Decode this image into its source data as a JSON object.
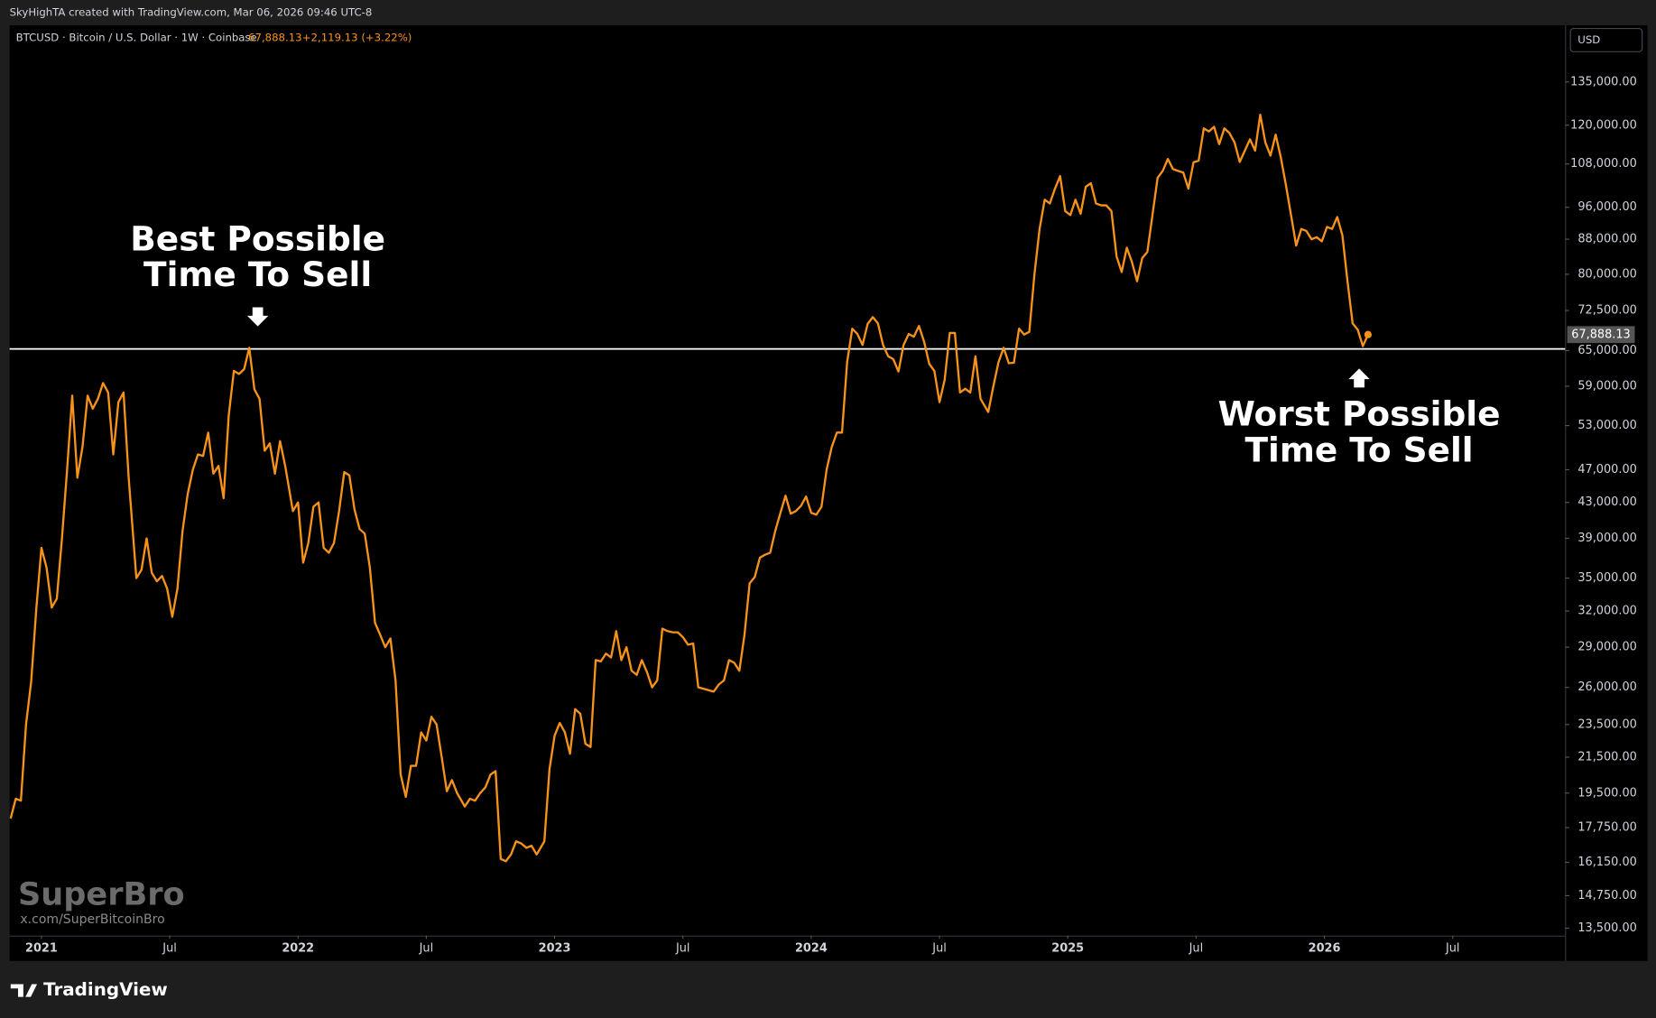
{
  "header": {
    "credit": "SkyHighTA created with TradingView.com, Mar 06, 2026 09:46 UTC-8",
    "symbol": "BTCUSD · Bitcoin / U.S. Dollar · 1W · Coinbase",
    "change": "+2,119.13 (+3.22%)",
    "currency": "USD"
  },
  "watermark": {
    "name": "SuperBro",
    "handle": "x.com/SuperBitcoinBro"
  },
  "footer": {
    "brand": "TradingView"
  },
  "chart_data": {
    "type": "line",
    "log_scale": true,
    "grid": false,
    "annotations": [
      "Best Possible",
      "Time To Sell",
      "Worst Possible",
      "Time To Sell"
    ],
    "price_label": "67,888.13",
    "reference_line": 65300,
    "xlim": [
      2020.876,
      2026.938
    ],
    "xticks": [
      {
        "value": 2021,
        "label": "2021"
      },
      {
        "value": 2021.5,
        "label": "Jul"
      },
      {
        "value": 2022,
        "label": "2022"
      },
      {
        "value": 2022.5,
        "label": "Jul"
      },
      {
        "value": 2023,
        "label": "2023"
      },
      {
        "value": 2023.5,
        "label": "Jul"
      },
      {
        "value": 2024,
        "label": "2024"
      },
      {
        "value": 2024.5,
        "label": "Jul"
      },
      {
        "value": 2025,
        "label": "2025"
      },
      {
        "value": 2025.5,
        "label": "Jul"
      },
      {
        "value": 2026,
        "label": "2026"
      },
      {
        "value": 2026.5,
        "label": "Jul"
      }
    ],
    "ylim": [
      13230,
      157500
    ],
    "yticks": [
      {
        "value": 135000,
        "label": "135,000.00"
      },
      {
        "value": 120000,
        "label": "120,000.00"
      },
      {
        "value": 108000,
        "label": "108,000.00"
      },
      {
        "value": 96000,
        "label": "96,000.00"
      },
      {
        "value": 88000,
        "label": "88,000.00"
      },
      {
        "value": 80000,
        "label": "80,000.00"
      },
      {
        "value": 72500,
        "label": "72,500.00"
      },
      {
        "value": 65000,
        "label": "65,000.00"
      },
      {
        "value": 59000,
        "label": "59,000.00"
      },
      {
        "value": 53000,
        "label": "53,000.00"
      },
      {
        "value": 47000,
        "label": "47,000.00"
      },
      {
        "value": 43000,
        "label": "43,000.00"
      },
      {
        "value": 39000,
        "label": "39,000.00"
      },
      {
        "value": 35000,
        "label": "35,000.00"
      },
      {
        "value": 32000,
        "label": "32,000.00"
      },
      {
        "value": 29000,
        "label": "29,000.00"
      },
      {
        "value": 26000,
        "label": "26,000.00"
      },
      {
        "value": 23500,
        "label": "23,500.00"
      },
      {
        "value": 21500,
        "label": "21,500.00"
      },
      {
        "value": 19500,
        "label": "19,500.00"
      },
      {
        "value": 17750,
        "label": "17,750.00"
      },
      {
        "value": 16150,
        "label": "16,150.00"
      },
      {
        "value": 14750,
        "label": "14,750.00"
      },
      {
        "value": 13500,
        "label": "13,500.00"
      }
    ],
    "x": [
      2020.88,
      2020.9,
      2020.92,
      2020.94,
      2020.96,
      2020.98,
      2021.0,
      2021.02,
      2021.04,
      2021.06,
      2021.08,
      2021.1,
      2021.12,
      2021.14,
      2021.16,
      2021.18,
      2021.2,
      2021.22,
      2021.24,
      2021.26,
      2021.28,
      2021.3,
      2021.32,
      2021.34,
      2021.37,
      2021.39,
      2021.41,
      2021.43,
      2021.45,
      2021.47,
      2021.49,
      2021.51,
      2021.53,
      2021.55,
      2021.57,
      2021.59,
      2021.61,
      2021.63,
      2021.65,
      2021.67,
      2021.69,
      2021.71,
      2021.73,
      2021.75,
      2021.77,
      2021.79,
      2021.81,
      2021.83,
      2021.85,
      2021.87,
      2021.89,
      2021.91,
      2021.93,
      2021.95,
      2021.98,
      2022.0,
      2022.02,
      2022.04,
      2022.06,
      2022.08,
      2022.1,
      2022.12,
      2022.14,
      2022.16,
      2022.18,
      2022.2,
      2022.22,
      2022.24,
      2022.26,
      2022.28,
      2022.3,
      2022.32,
      2022.34,
      2022.36,
      2022.38,
      2022.4,
      2022.42,
      2022.44,
      2022.46,
      2022.48,
      2022.5,
      2022.52,
      2022.54,
      2022.56,
      2022.58,
      2022.6,
      2022.62,
      2022.65,
      2022.67,
      2022.69,
      2022.71,
      2022.73,
      2022.75,
      2022.77,
      2022.79,
      2022.81,
      2022.83,
      2022.85,
      2022.87,
      2022.89,
      2022.91,
      2022.93,
      2022.96,
      2022.98,
      2023.0,
      2023.02,
      2023.04,
      2023.06,
      2023.08,
      2023.1,
      2023.12,
      2023.14,
      2023.16,
      2023.18,
      2023.2,
      2023.22,
      2023.24,
      2023.26,
      2023.28,
      2023.3,
      2023.32,
      2023.34,
      2023.36,
      2023.38,
      2023.4,
      2023.42,
      2023.44,
      2023.46,
      2023.48,
      2023.5,
      2023.52,
      2023.54,
      2023.56,
      2023.58,
      2023.6,
      2023.62,
      2023.64,
      2023.66,
      2023.68,
      2023.7,
      2023.72,
      2023.74,
      2023.76,
      2023.78,
      2023.8,
      2023.82,
      2023.84,
      2023.86,
      2023.88,
      2023.9,
      2023.92,
      2023.94,
      2023.96,
      2023.98,
      2024.0,
      2024.02,
      2024.04,
      2024.06,
      2024.08,
      2024.1,
      2024.12,
      2024.14,
      2024.16,
      2024.18,
      2024.2,
      2024.22,
      2024.24,
      2024.26,
      2024.28,
      2024.3,
      2024.32,
      2024.34,
      2024.36,
      2024.38,
      2024.4,
      2024.42,
      2024.44,
      2024.46,
      2024.48,
      2024.5,
      2024.52,
      2024.54,
      2024.56,
      2024.58,
      2024.6,
      2024.62,
      2024.64,
      2024.66,
      2024.69,
      2024.71,
      2024.73,
      2024.75,
      2024.77,
      2024.79,
      2024.81,
      2024.83,
      2024.85,
      2024.87,
      2024.89,
      2024.91,
      2024.93,
      2024.95,
      2024.97,
      2024.99,
      2025.01,
      2025.03,
      2025.05,
      2025.07,
      2025.09,
      2025.11,
      2025.13,
      2025.15,
      2025.17,
      2025.19,
      2025.21,
      2025.23,
      2025.25,
      2025.27,
      2025.29,
      2025.31,
      2025.33,
      2025.35,
      2025.37,
      2025.39,
      2025.41,
      2025.43,
      2025.45,
      2025.47,
      2025.49,
      2025.51,
      2025.53,
      2025.55,
      2025.57,
      2025.59,
      2025.61,
      2025.63,
      2025.65,
      2025.67,
      2025.69,
      2025.71,
      2025.73,
      2025.75,
      2025.77,
      2025.79,
      2025.81,
      2025.83,
      2025.85,
      2025.87,
      2025.89,
      2025.91,
      2025.93,
      2025.95,
      2025.97,
      2025.99,
      2026.01,
      2026.03,
      2026.05,
      2026.07,
      2026.09,
      2026.11,
      2026.13,
      2026.15,
      2026.17
    ],
    "series": [
      {
        "name": "BTCUSD",
        "color": "#f7931a",
        "values": [
          18200,
          19200,
          19100,
          23500,
          26400,
          32200,
          38000,
          36000,
          32300,
          33100,
          39000,
          47000,
          57500,
          46000,
          50000,
          57500,
          55500,
          57000,
          59500,
          58000,
          49000,
          56500,
          58000,
          46000,
          35000,
          35800,
          39000,
          35500,
          34700,
          35200,
          34000,
          31500,
          34000,
          39800,
          44000,
          47000,
          49000,
          48800,
          52000,
          46500,
          47500,
          43500,
          54500,
          61500,
          61000,
          61800,
          65500,
          58500,
          57000,
          49500,
          50500,
          46500,
          50800,
          47500,
          42000,
          43000,
          36500,
          38500,
          42500,
          43000,
          38000,
          37500,
          38500,
          42000,
          46700,
          46300,
          42200,
          40000,
          39500,
          36000,
          31000,
          30000,
          29000,
          29700,
          26500,
          20500,
          19300,
          21000,
          21000,
          23000,
          22500,
          24000,
          23500,
          21500,
          19600,
          20200,
          19500,
          18800,
          19200,
          19100,
          19500,
          19800,
          20500,
          20700,
          16300,
          16200,
          16500,
          17100,
          17000,
          16800,
          16900,
          16500,
          17100,
          20800,
          22800,
          23600,
          23000,
          21700,
          24500,
          24200,
          22300,
          22100,
          28000,
          27900,
          28500,
          28200,
          30300,
          28000,
          29000,
          27200,
          26900,
          28000,
          27100,
          26000,
          26500,
          30500,
          30300,
          30200,
          30200,
          29800,
          29200,
          29300,
          26000,
          25900,
          25800,
          25700,
          26200,
          26500,
          28000,
          27800,
          27200,
          30000,
          34500,
          35100,
          37000,
          37300,
          37500,
          39800,
          41800,
          43800,
          41700,
          42000,
          42600,
          43700,
          41800,
          41600,
          42500,
          47000,
          50000,
          52000,
          52000,
          63000,
          69000,
          68000,
          66000,
          69900,
          71200,
          70000,
          66000,
          64000,
          63500,
          61400,
          66000,
          68000,
          67500,
          69500,
          66600,
          62700,
          61500,
          56500,
          60000,
          68200,
          68200,
          58000,
          58600,
          58000,
          64000,
          57000,
          55000,
          59000,
          63000,
          65500,
          62800,
          62900,
          69000,
          67900,
          68400,
          80000,
          90500,
          98000,
          97000,
          101000,
          104500,
          95000,
          94000,
          98000,
          94300,
          101500,
          102500,
          97000,
          96500,
          96500,
          95000,
          84000,
          80500,
          86000,
          82700,
          78500,
          83600,
          85000,
          94000,
          104000,
          106000,
          109500,
          106500,
          106000,
          105500,
          101000,
          108500,
          109000,
          119000,
          118000,
          119500,
          114000,
          119000,
          117500,
          114500,
          108600,
          112000,
          115500,
          112000,
          123500,
          114500,
          110500,
          117000,
          110000,
          102000,
          94000,
          86500,
          90500,
          90000,
          88000,
          88500,
          87500,
          91000,
          90500,
          93500,
          89000,
          78500,
          70000,
          68800,
          65800,
          67888.13
        ]
      }
    ]
  }
}
